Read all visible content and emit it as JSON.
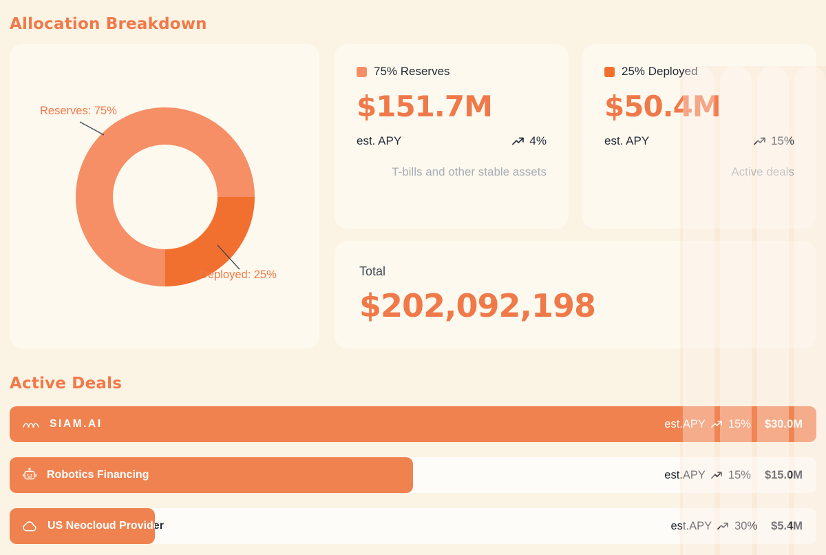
{
  "colors": {
    "accent_orange": "#F0794A",
    "slice_reserves": "#F68E66",
    "slice_deployed": "#F2702F",
    "deal_bar": "#F0824F",
    "dark_text": "#232B38",
    "muted_text": "#A9ADB5",
    "page_bg": "#FBF3E4",
    "card_bg": "#FDF9EE"
  },
  "sections": {
    "allocation_title": "Allocation Breakdown",
    "deals_title": "Active Deals"
  },
  "chart_data": {
    "type": "pie",
    "title": "Allocation Breakdown",
    "donut": true,
    "legend_position": "callouts",
    "slices": [
      {
        "label": "Reserves",
        "value": 75,
        "color": "#F68E66",
        "callout": "Reserves: 75%"
      },
      {
        "label": "Deployed",
        "value": 25,
        "color": "#F2702F",
        "callout": "Deployed: 25%"
      }
    ]
  },
  "cards": {
    "reserves": {
      "legend": "75% Reserves",
      "amount": "$151.7M",
      "apy_label": "est. APY",
      "apy_value": "4%",
      "note": "T-bills and other stable assets"
    },
    "deployed": {
      "legend": "25% Deployed",
      "amount": "$50.4M",
      "apy_label": "est. APY",
      "apy_value": "15%",
      "note": "Active deals"
    },
    "total": {
      "label": "Total",
      "amount": "$202,092,198"
    }
  },
  "deals": [
    {
      "name": "SIAM.AI",
      "icon": "waves",
      "apy_label": "est.APY",
      "apy": "15%",
      "amount": "$30.0M",
      "bar_pct": 100
    },
    {
      "name": "Robotics Financing",
      "icon": "robot",
      "apy_label": "est.APY",
      "apy": "15%",
      "amount": "$15.0M",
      "bar_pct": 50
    },
    {
      "name": "US Neocloud Provider",
      "icon": "cloud",
      "apy_label": "est.APY",
      "apy": "30%",
      "amount": "$5.4M",
      "bar_pct": 18
    }
  ]
}
